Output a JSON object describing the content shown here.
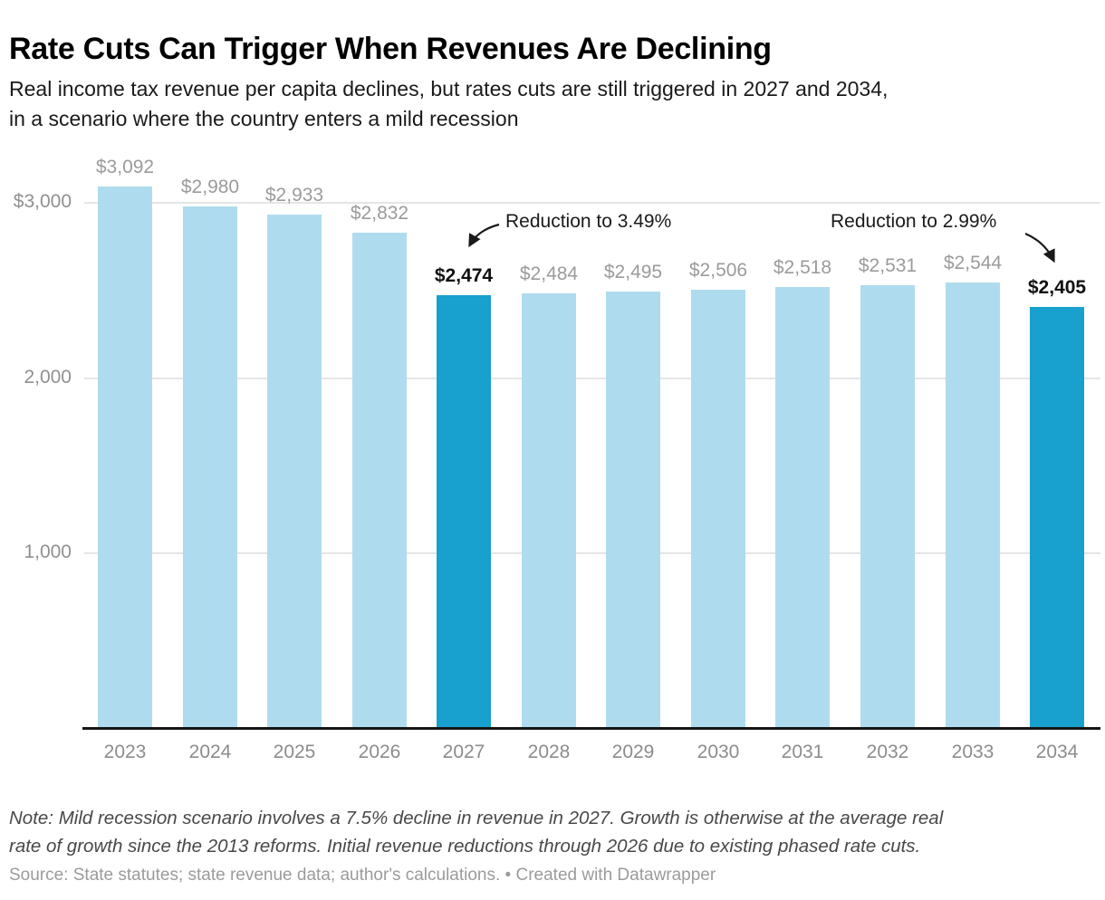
{
  "header": {
    "title": "Rate Cuts Can Trigger When Revenues Are Declining",
    "subtitle_line1": "Real income tax revenue per capita declines, but rates cuts are still triggered in 2027 and 2034,",
    "subtitle_line2": "in a scenario where the country enters a mild recession"
  },
  "chart_data": {
    "type": "bar",
    "title": "Rate Cuts Can Trigger When Revenues Are Declining",
    "categories": [
      "2023",
      "2024",
      "2025",
      "2026",
      "2027",
      "2028",
      "2029",
      "2030",
      "2031",
      "2032",
      "2033",
      "2034"
    ],
    "values": [
      3092,
      2980,
      2933,
      2832,
      2474,
      2484,
      2495,
      2506,
      2518,
      2531,
      2544,
      2405
    ],
    "value_labels": [
      "$3,092",
      "$2,980",
      "$2,933",
      "$2,832",
      "$2,474",
      "$2,484",
      "$2,495",
      "$2,506",
      "$2,518",
      "$2,531",
      "$2,544",
      "$2,405"
    ],
    "highlighted_categories": [
      "2027",
      "2034"
    ],
    "ylabel": "",
    "xlabel": "",
    "ylim": [
      0,
      3335
    ],
    "yticks": [
      {
        "value": 3000,
        "label": "$3,000"
      },
      {
        "value": 2000,
        "label": "2,000"
      },
      {
        "value": 1000,
        "label": "1,000"
      }
    ],
    "grid": "horizontal",
    "legend": "none",
    "annotations": [
      {
        "text": "Reduction to 3.49%",
        "target_category": "2027"
      },
      {
        "text": "Reduction to 2.99%",
        "target_category": "2034"
      }
    ],
    "colors": {
      "bar_default": "#aedcee",
      "bar_highlight": "#18a0ce",
      "gridline": "#e5e5e5",
      "axis_line": "#161616",
      "value_label": "#9b9b9b",
      "value_label_highlight": "#111111",
      "year_label": "#8c8c8c"
    }
  },
  "footer": {
    "note_line1": "Note: Mild recession scenario involves a 7.5% decline in revenue in 2027. Growth is otherwise at the average real",
    "note_line2": "rate of growth since the 2013 reforms. Initial revenue reductions through 2026 due to existing phased rate cuts.",
    "source": "Source: State statutes; state revenue data; author's calculations. • Created with Datawrapper"
  }
}
